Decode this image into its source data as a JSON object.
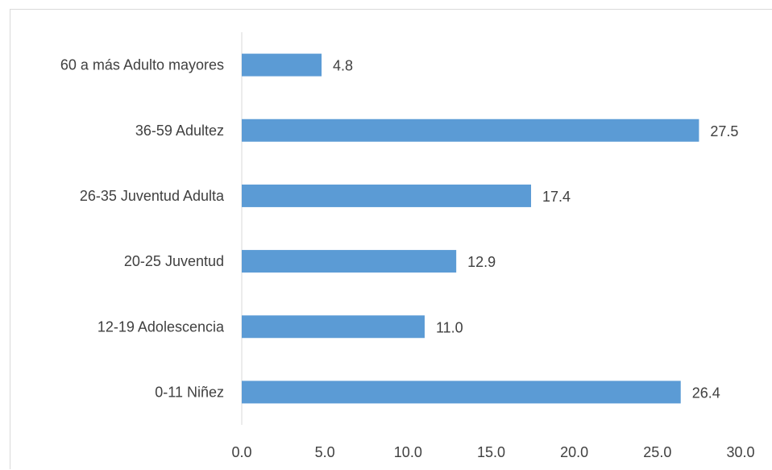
{
  "chart_data": {
    "type": "bar",
    "orientation": "horizontal",
    "title": "",
    "xlabel": "",
    "ylabel": "",
    "categories": [
      "60 a más Adulto mayores",
      "36-59 Adultez",
      "26-35 Juventud Adulta",
      "20-25 Juventud",
      "12-19 Adolescencia",
      "0-11 Niñez"
    ],
    "values": [
      4.8,
      27.5,
      17.4,
      12.9,
      11.0,
      26.4
    ],
    "value_labels": [
      "4.8",
      "27.5",
      "17.4",
      "12.9",
      "11.0",
      "26.4"
    ],
    "xlim": [
      0,
      30
    ],
    "x_ticks": [
      0,
      5,
      10,
      15,
      20,
      25,
      30
    ],
    "x_tick_labels": [
      "0.0",
      "5.0",
      "10.0",
      "15.0",
      "20.0",
      "25.0",
      "30.0"
    ],
    "grid": false,
    "legend": "none",
    "bar_color": "#5b9bd5"
  }
}
